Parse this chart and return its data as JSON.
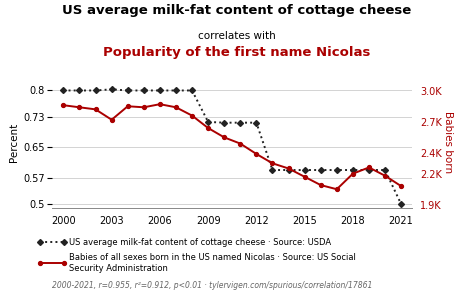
{
  "title1": "US average milk-fat content of cottage cheese",
  "title2": "correlates with",
  "title3": "Popularity of the first name Nicolas",
  "years": [
    2000,
    2001,
    2002,
    2003,
    2004,
    2005,
    2006,
    2007,
    2008,
    2009,
    2010,
    2011,
    2012,
    2013,
    2014,
    2015,
    2016,
    2017,
    2018,
    2019,
    2020,
    2021
  ],
  "milkfat": [
    0.8,
    0.8,
    0.8,
    0.803,
    0.8,
    0.8,
    0.8,
    0.8,
    0.8,
    0.717,
    0.715,
    0.715,
    0.715,
    0.59,
    0.59,
    0.59,
    0.59,
    0.59,
    0.59,
    0.59,
    0.59,
    0.5
  ],
  "nicolas": [
    2860,
    2840,
    2820,
    2720,
    2850,
    2840,
    2870,
    2840,
    2760,
    2640,
    2550,
    2490,
    2390,
    2300,
    2250,
    2170,
    2090,
    2050,
    2200,
    2260,
    2180,
    2080
  ],
  "milkfat_color": "#222222",
  "nicolas_color": "#aa0000",
  "ylabel_left": "Percent",
  "ylabel_right": "Babies born",
  "ylim_left": [
    0.49,
    0.835
  ],
  "ylim_right": [
    1870,
    3130
  ],
  "yticks_left": [
    0.5,
    0.57,
    0.65,
    0.73,
    0.8
  ],
  "yticks_right": [
    1900,
    2200,
    2400,
    2700,
    3000
  ],
  "ytick_labels_right": [
    "1.9K",
    "2.2K",
    "2.4K",
    "2.7K",
    "3.0K"
  ],
  "xticks": [
    2000,
    2003,
    2006,
    2009,
    2012,
    2015,
    2018,
    2021
  ],
  "footnote": "2000-2021, r=0.955, r²=0.912, p<0.01 · tylervigen.com/spurious/correlation/17861",
  "legend1": "US average milk-fat content of cottage cheese · Source: USDA",
  "legend2": "Babies of all sexes born in the US named Nicolas · Source: US Social\nSecurity Administration",
  "background_color": "#ffffff"
}
